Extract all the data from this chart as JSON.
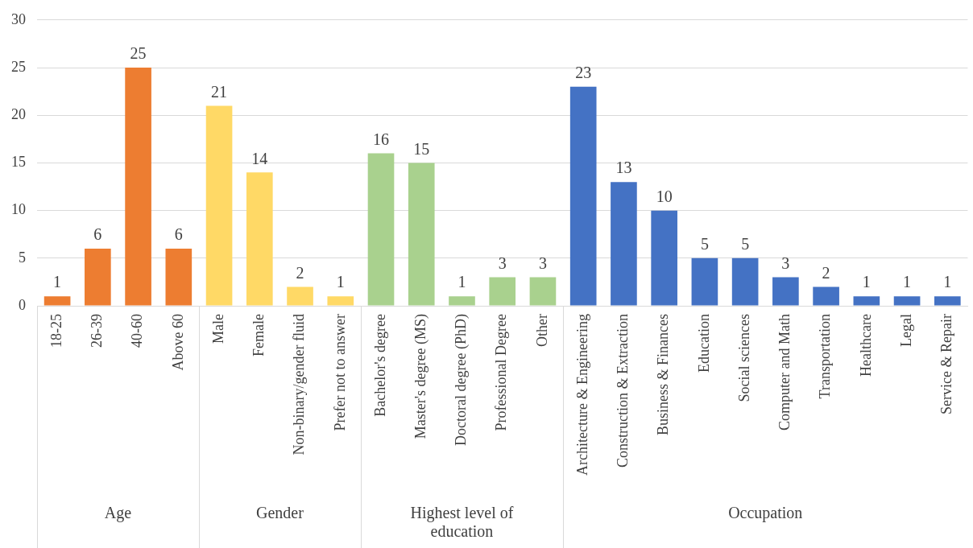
{
  "chart_data": {
    "type": "bar",
    "categories": [
      "18-25",
      "26-39",
      "40-60",
      "Above 60",
      "Male",
      "Female",
      "Non-binary/gender fluid",
      "Prefer not to answer",
      "Bachelor's degree",
      "Master's degree (MS)",
      "Doctoral degree (PhD)",
      "Professional Degree",
      "Other",
      "Architecture & Engineering",
      "Construction & Extraction",
      "Business & Finances",
      "Education",
      "Social sciences",
      "Computer and Math",
      "Transportation",
      "Healthcare",
      "Legal",
      "Service & Repair"
    ],
    "series": [
      {
        "color": "#ed7d31",
        "values": [
          1,
          6,
          25,
          6,
          null,
          null,
          null,
          null,
          null,
          null,
          null,
          null,
          null,
          null,
          null,
          null,
          null,
          null,
          null,
          null,
          null,
          null,
          null
        ]
      },
      {
        "color": "#ffd966",
        "values": [
          null,
          null,
          null,
          null,
          21,
          14,
          2,
          1,
          null,
          null,
          null,
          null,
          null,
          null,
          null,
          null,
          null,
          null,
          null,
          null,
          null,
          null,
          null
        ]
      },
      {
        "color": "#a9d18e",
        "values": [
          null,
          null,
          null,
          null,
          null,
          null,
          null,
          null,
          16,
          15,
          1,
          3,
          3,
          null,
          null,
          null,
          null,
          null,
          null,
          null,
          null,
          null,
          null
        ]
      },
      {
        "color": "#4472c4",
        "values": [
          null,
          null,
          null,
          null,
          null,
          null,
          null,
          null,
          null,
          null,
          null,
          null,
          null,
          23,
          13,
          10,
          5,
          5,
          3,
          2,
          1,
          1,
          1
        ]
      }
    ],
    "annotations": [
      "Age",
      "Gender",
      "Highest level of education",
      "Occupation"
    ],
    "ylim": [
      0,
      30
    ],
    "yticks": [
      0,
      5,
      10,
      15,
      20,
      25,
      30
    ],
    "grid": "y",
    "data_labels": true
  }
}
